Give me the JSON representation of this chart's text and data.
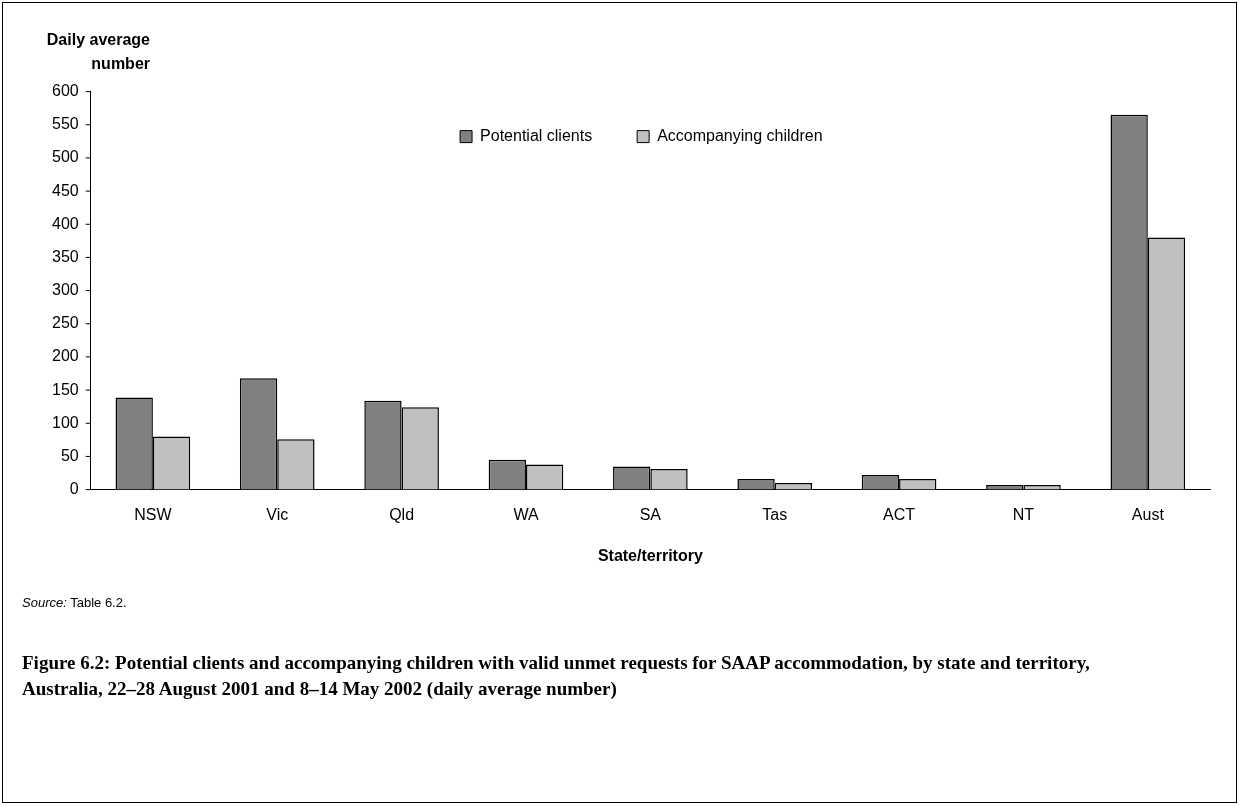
{
  "chart_data": {
    "type": "bar",
    "ylabel": "Daily average number",
    "xlabel": "State/territory",
    "title": "Figure 6.2: Potential clients and accompanying children with valid unmet requests for SAAP accommodation, by state and territory, Australia, 22–28 August 2001 and 8–14 May 2002 (daily average number)",
    "categories": [
      "NSW",
      "Vic",
      "Qld",
      "WA",
      "SA",
      "Tas",
      "ACT",
      "NT",
      "Aust"
    ],
    "series": [
      {
        "name": "Potential clients",
        "color": "#808080",
        "values": [
          139,
          168,
          134,
          45,
          35,
          16,
          22,
          7,
          565
        ]
      },
      {
        "name": "Accompanying children",
        "color": "#c0c0c0",
        "values": [
          80,
          76,
          124,
          38,
          31,
          10,
          16,
          7,
          380
        ]
      }
    ],
    "ylim": [
      0,
      600
    ],
    "yticks": [
      0,
      50,
      100,
      150,
      200,
      250,
      300,
      350,
      400,
      450,
      500,
      550,
      600
    ],
    "grid": false,
    "legend": "top",
    "annotations": [
      "Source: Table 6.2."
    ]
  }
}
